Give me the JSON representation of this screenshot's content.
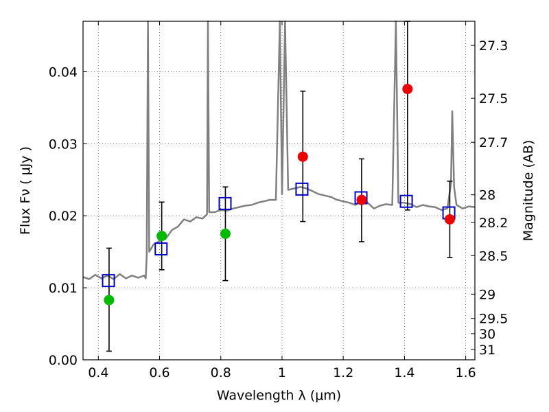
{
  "chart_data": {
    "type": "scatter",
    "xlabel": "Wavelength  λ (μm)",
    "ylabel": "Flux  Fν  ( μJy )",
    "y2label": "Magnitude (AB)",
    "xlim": [
      0.35,
      1.63
    ],
    "ylim": [
      0.0,
      0.047
    ],
    "x_ticks": [
      0.4,
      0.6,
      0.8,
      1.0,
      1.2,
      1.4,
      1.6
    ],
    "x_tick_labels": [
      "0.4",
      "0.6",
      "0.8",
      "1",
      "1.2",
      "1.4",
      "1.6"
    ],
    "y_ticks": [
      0.0,
      0.01,
      0.02,
      0.03,
      0.04
    ],
    "y_tick_labels": [
      "0.00",
      "0.01",
      "0.02",
      "0.03",
      "0.04"
    ],
    "y2_ticks": [
      27.3,
      27.5,
      27.7,
      28,
      28.2,
      28.5,
      29,
      29.5,
      30,
      31
    ],
    "y2_tick_labels": [
      "27.3",
      "27.5",
      "27.7",
      "28",
      "28.2",
      "28.5",
      "29",
      "29.5",
      "30",
      "31"
    ],
    "grid": true,
    "colors": {
      "spectrum": "#808080",
      "model_markers": "#0000cc",
      "green_points": "#00bb00",
      "red_points": "#ee0000",
      "errorbars": "#000000"
    },
    "series": [
      {
        "kind": "spectrum",
        "points": [
          [
            0.35,
            0.0115
          ],
          [
            0.37,
            0.0112
          ],
          [
            0.39,
            0.0118
          ],
          [
            0.41,
            0.0113
          ],
          [
            0.43,
            0.0117
          ],
          [
            0.45,
            0.0112
          ],
          [
            0.47,
            0.0119
          ],
          [
            0.49,
            0.0113
          ],
          [
            0.51,
            0.0117
          ],
          [
            0.53,
            0.0114
          ],
          [
            0.55,
            0.0117
          ],
          [
            0.555,
            0.0113
          ],
          [
            0.558,
            0.0145
          ],
          [
            0.562,
            0.047
          ],
          [
            0.566,
            0.015
          ],
          [
            0.58,
            0.016
          ],
          [
            0.6,
            0.0165
          ],
          [
            0.62,
            0.0168
          ],
          [
            0.64,
            0.018
          ],
          [
            0.66,
            0.0185
          ],
          [
            0.68,
            0.0195
          ],
          [
            0.7,
            0.0192
          ],
          [
            0.72,
            0.0198
          ],
          [
            0.74,
            0.0196
          ],
          [
            0.755,
            0.0202
          ],
          [
            0.758,
            0.047
          ],
          [
            0.762,
            0.0205
          ],
          [
            0.78,
            0.0205
          ],
          [
            0.8,
            0.0208
          ],
          [
            0.82,
            0.0207
          ],
          [
            0.84,
            0.021
          ],
          [
            0.86,
            0.0212
          ],
          [
            0.88,
            0.0214
          ],
          [
            0.9,
            0.0215
          ],
          [
            0.92,
            0.0218
          ],
          [
            0.94,
            0.022
          ],
          [
            0.96,
            0.0222
          ],
          [
            0.98,
            0.0222
          ],
          [
            0.993,
            0.047
          ],
          [
            1.0,
            0.023
          ],
          [
            1.01,
            0.047
          ],
          [
            1.02,
            0.0236
          ],
          [
            1.04,
            0.0238
          ],
          [
            1.06,
            0.024
          ],
          [
            1.08,
            0.0238
          ],
          [
            1.1,
            0.0234
          ],
          [
            1.12,
            0.023
          ],
          [
            1.14,
            0.0228
          ],
          [
            1.16,
            0.0226
          ],
          [
            1.18,
            0.0222
          ],
          [
            1.2,
            0.022
          ],
          [
            1.22,
            0.0218
          ],
          [
            1.24,
            0.0215
          ],
          [
            1.26,
            0.0222
          ],
          [
            1.28,
            0.0218
          ],
          [
            1.3,
            0.021
          ],
          [
            1.32,
            0.0214
          ],
          [
            1.34,
            0.0216
          ],
          [
            1.36,
            0.0215
          ],
          [
            1.372,
            0.047
          ],
          [
            1.38,
            0.0218
          ],
          [
            1.4,
            0.0218
          ],
          [
            1.42,
            0.0216
          ],
          [
            1.44,
            0.0212
          ],
          [
            1.46,
            0.0215
          ],
          [
            1.48,
            0.0213
          ],
          [
            1.5,
            0.0212
          ],
          [
            1.52,
            0.0208
          ],
          [
            1.54,
            0.021
          ],
          [
            1.552,
            0.0245
          ],
          [
            1.556,
            0.0345
          ],
          [
            1.562,
            0.024
          ],
          [
            1.57,
            0.0215
          ],
          [
            1.59,
            0.021
          ],
          [
            1.61,
            0.0213
          ],
          [
            1.63,
            0.0212
          ]
        ]
      },
      {
        "kind": "model-squares",
        "points": [
          [
            0.433,
            0.011
          ],
          [
            0.605,
            0.0154
          ],
          [
            0.814,
            0.0217
          ],
          [
            1.065,
            0.0237
          ],
          [
            1.258,
            0.0225
          ],
          [
            1.406,
            0.022
          ],
          [
            1.545,
            0.0204
          ]
        ]
      },
      {
        "kind": "green-points",
        "points": [
          {
            "x": 0.435,
            "y": 0.0083,
            "ylow": 0.0012,
            "yhigh": 0.0155
          },
          {
            "x": 0.607,
            "y": 0.0172,
            "ylow": 0.0125,
            "yhigh": 0.0219
          },
          {
            "x": 0.815,
            "y": 0.0175,
            "ylow": 0.011,
            "yhigh": 0.024
          }
        ]
      },
      {
        "kind": "red-points",
        "points": [
          {
            "x": 1.068,
            "y": 0.0282,
            "ylow": 0.0192,
            "yhigh": 0.0373
          },
          {
            "x": 1.26,
            "y": 0.0222,
            "ylow": 0.0164,
            "yhigh": 0.0279
          },
          {
            "x": 1.41,
            "y": 0.0376,
            "ylow": 0.0208,
            "yhigh": 0.047
          },
          {
            "x": 1.548,
            "y": 0.0195,
            "ylow": 0.0142,
            "yhigh": 0.0248
          }
        ]
      }
    ]
  }
}
